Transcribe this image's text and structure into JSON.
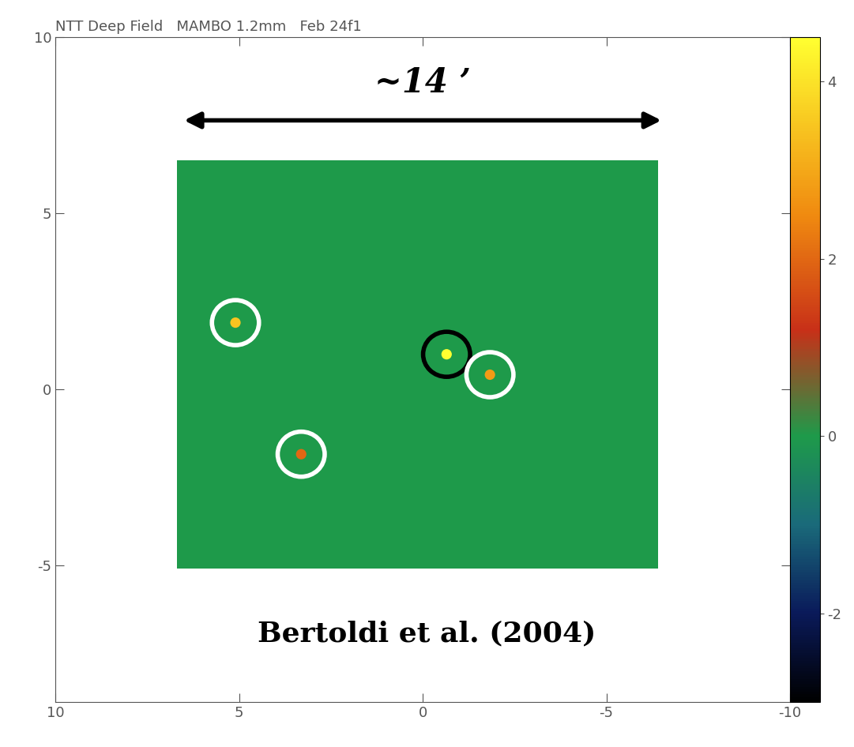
{
  "chart_data": {
    "type": "heatmap",
    "title": "NTT Deep Field   MAMBO 1.2mm   Feb 24f1",
    "xlim": [
      10,
      -10
    ],
    "ylim": [
      -8.9,
      10
    ],
    "xticks": [
      10,
      5,
      0,
      -5,
      -10
    ],
    "yticks": [
      10,
      5,
      0,
      -5
    ],
    "map_extent": {
      "x": [
        6.7,
        -6.4
      ],
      "y": [
        -5.1,
        6.5
      ]
    },
    "sources": {
      "x": [
        -0.65,
        5.1,
        -1.83,
        3.31
      ],
      "y": [
        0.99,
        1.89,
        0.41,
        -1.85
      ],
      "values": [
        4.5,
        3.5,
        2.8,
        2.0
      ]
    },
    "circles": [
      {
        "x": -0.65,
        "y": 0.99,
        "radius": 0.64,
        "color": "black"
      },
      {
        "x": 5.1,
        "y": 1.89,
        "radius": 0.64,
        "color": "white"
      },
      {
        "x": -1.83,
        "y": 0.41,
        "radius": 0.64,
        "color": "white"
      },
      {
        "x": 3.31,
        "y": -1.85,
        "radius": 0.64,
        "color": "white"
      }
    ],
    "arrow": {
      "x": [
        6.56,
        -6.56
      ],
      "y": 7.64,
      "label": "~14 ’"
    },
    "annotations": [
      {
        "text": "Bertoldi et al. (2004)",
        "x": -0.1,
        "y": -6.95
      }
    ],
    "colorbar": {
      "range": [
        -3,
        4.5
      ],
      "ticks": [
        -2,
        0,
        2,
        4
      ]
    }
  }
}
